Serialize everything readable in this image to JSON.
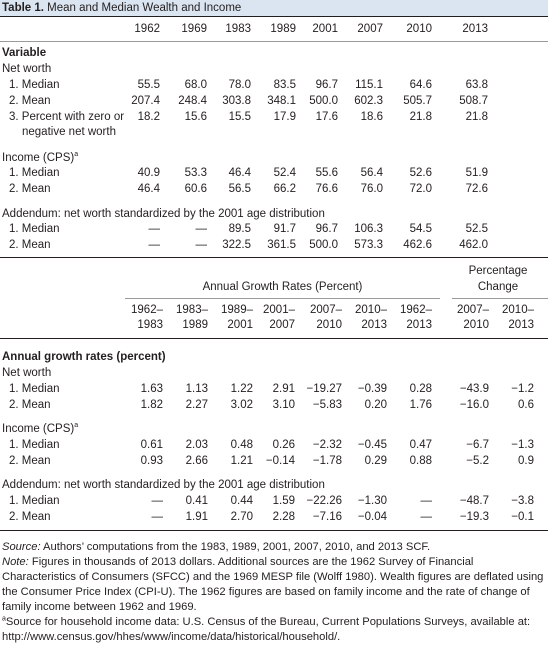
{
  "title": {
    "label": "Table 1.",
    "text": "Mean and Median Wealth and Income"
  },
  "top_table": {
    "years": [
      "1962",
      "1969",
      "1983",
      "1989",
      "2001",
      "2007",
      "2010",
      "2013"
    ],
    "variable_heading": "Variable",
    "sections": [
      {
        "label": "Net worth",
        "sup": "",
        "rows": [
          {
            "label": "1. Median",
            "values": [
              "55.5",
              "68.0",
              "78.0",
              "83.5",
              "96.7",
              "115.1",
              "64.6",
              "63.8"
            ]
          },
          {
            "label": "2. Mean",
            "values": [
              "207.4",
              "248.4",
              "303.8",
              "348.1",
              "500.0",
              "602.3",
              "505.7",
              "508.7"
            ]
          },
          {
            "label": "3. Percent with zero or",
            "label2": "negative net worth",
            "values": [
              "18.2",
              "15.6",
              "15.5",
              "17.9",
              "17.6",
              "18.6",
              "21.8",
              "21.8"
            ]
          }
        ]
      },
      {
        "label": "Income (CPS)",
        "sup": "a",
        "rows": [
          {
            "label": "1. Median",
            "values": [
              "40.9",
              "53.3",
              "46.4",
              "52.4",
              "55.6",
              "56.4",
              "52.6",
              "51.9"
            ]
          },
          {
            "label": "2. Mean",
            "values": [
              "46.4",
              "60.6",
              "56.5",
              "66.2",
              "76.6",
              "76.0",
              "72.0",
              "72.6"
            ]
          }
        ]
      },
      {
        "label": "Addendum: net worth standardized by the 2001 age distribution",
        "sup": "",
        "rows": [
          {
            "label": "1. Median",
            "values": [
              "—",
              "—",
              "89.5",
              "91.7",
              "96.7",
              "106.3",
              "54.5",
              "52.5"
            ]
          },
          {
            "label": "2. Mean",
            "values": [
              "—",
              "—",
              "322.5",
              "361.5",
              "500.0",
              "573.3",
              "462.6",
              "462.0"
            ]
          }
        ]
      }
    ]
  },
  "bottom_table": {
    "group_annual": "Annual Growth Rates (Percent)",
    "group_change": [
      "Percentage",
      "Change"
    ],
    "periods": [
      [
        "1962–",
        "1983"
      ],
      [
        "1983–",
        "1989"
      ],
      [
        "1989–",
        "2001"
      ],
      [
        "2001–",
        "2007"
      ],
      [
        "2007–",
        "2010"
      ],
      [
        "2010–",
        "2013"
      ],
      [
        "1962–",
        "2013"
      ],
      [
        "2007–",
        "2010"
      ],
      [
        "2010–",
        "2013"
      ]
    ],
    "heading": "Annual growth rates (percent)",
    "sections": [
      {
        "label": "Net worth",
        "sup": "",
        "rows": [
          {
            "label": "1. Median",
            "values": [
              "1.63",
              "1.13",
              "1.22",
              "2.91",
              "−19.27",
              "−0.39",
              "0.28",
              "−43.9",
              "−1.2"
            ]
          },
          {
            "label": "2. Mean",
            "values": [
              "1.82",
              "2.27",
              "3.02",
              "3.10",
              "−5.83",
              "0.20",
              "1.76",
              "−16.0",
              "0.6"
            ]
          }
        ]
      },
      {
        "label": "Income (CPS)",
        "sup": "a",
        "rows": [
          {
            "label": "1. Median",
            "values": [
              "0.61",
              "2.03",
              "0.48",
              "0.26",
              "−2.32",
              "−0.45",
              "0.47",
              "−6.7",
              "−1.3"
            ]
          },
          {
            "label": "2. Mean",
            "values": [
              "0.93",
              "2.66",
              "1.21",
              "−0.14",
              "−1.78",
              "0.29",
              "0.88",
              "−5.2",
              "0.9"
            ]
          }
        ]
      },
      {
        "label": "Addendum: net worth standardized by the 2001 age distribution",
        "sup": "",
        "rows": [
          {
            "label": "1. Median",
            "values": [
              "—",
              "0.41",
              "0.44",
              "1.59",
              "−22.26",
              "−1.30",
              "—",
              "−48.7",
              "−3.8"
            ]
          },
          {
            "label": "2. Mean",
            "values": [
              "—",
              "1.91",
              "2.70",
              "2.28",
              "−7.16",
              "−0.04",
              "—",
              "−19.3",
              "−0.1"
            ]
          }
        ]
      }
    ]
  },
  "notes": {
    "source_label": "Source:",
    "source_text": " Authors’ computations from the 1983, 1989, 2001, 2007, 2010, and 2013 SCF.",
    "note_label": "Note:",
    "note_text": " Figures in thousands of 2013 dollars. Additional sources are the 1962 Survey of Financial Characteristics of Consumers (SFCC) and the 1969 MESP file (Wolff 1980). Wealth figures are deflated using the Consumer Price Index (CPI-U). The 1962 figures are based on family income and the rate of change of family income between 1962 and 1969.",
    "footnote_sup": "a",
    "footnote_text": "Source for household income data: U.S. Census of the Bureau, Current Populations Surveys, available at: http://www.census.gov/hhes/www/income/data/historical/household/."
  }
}
